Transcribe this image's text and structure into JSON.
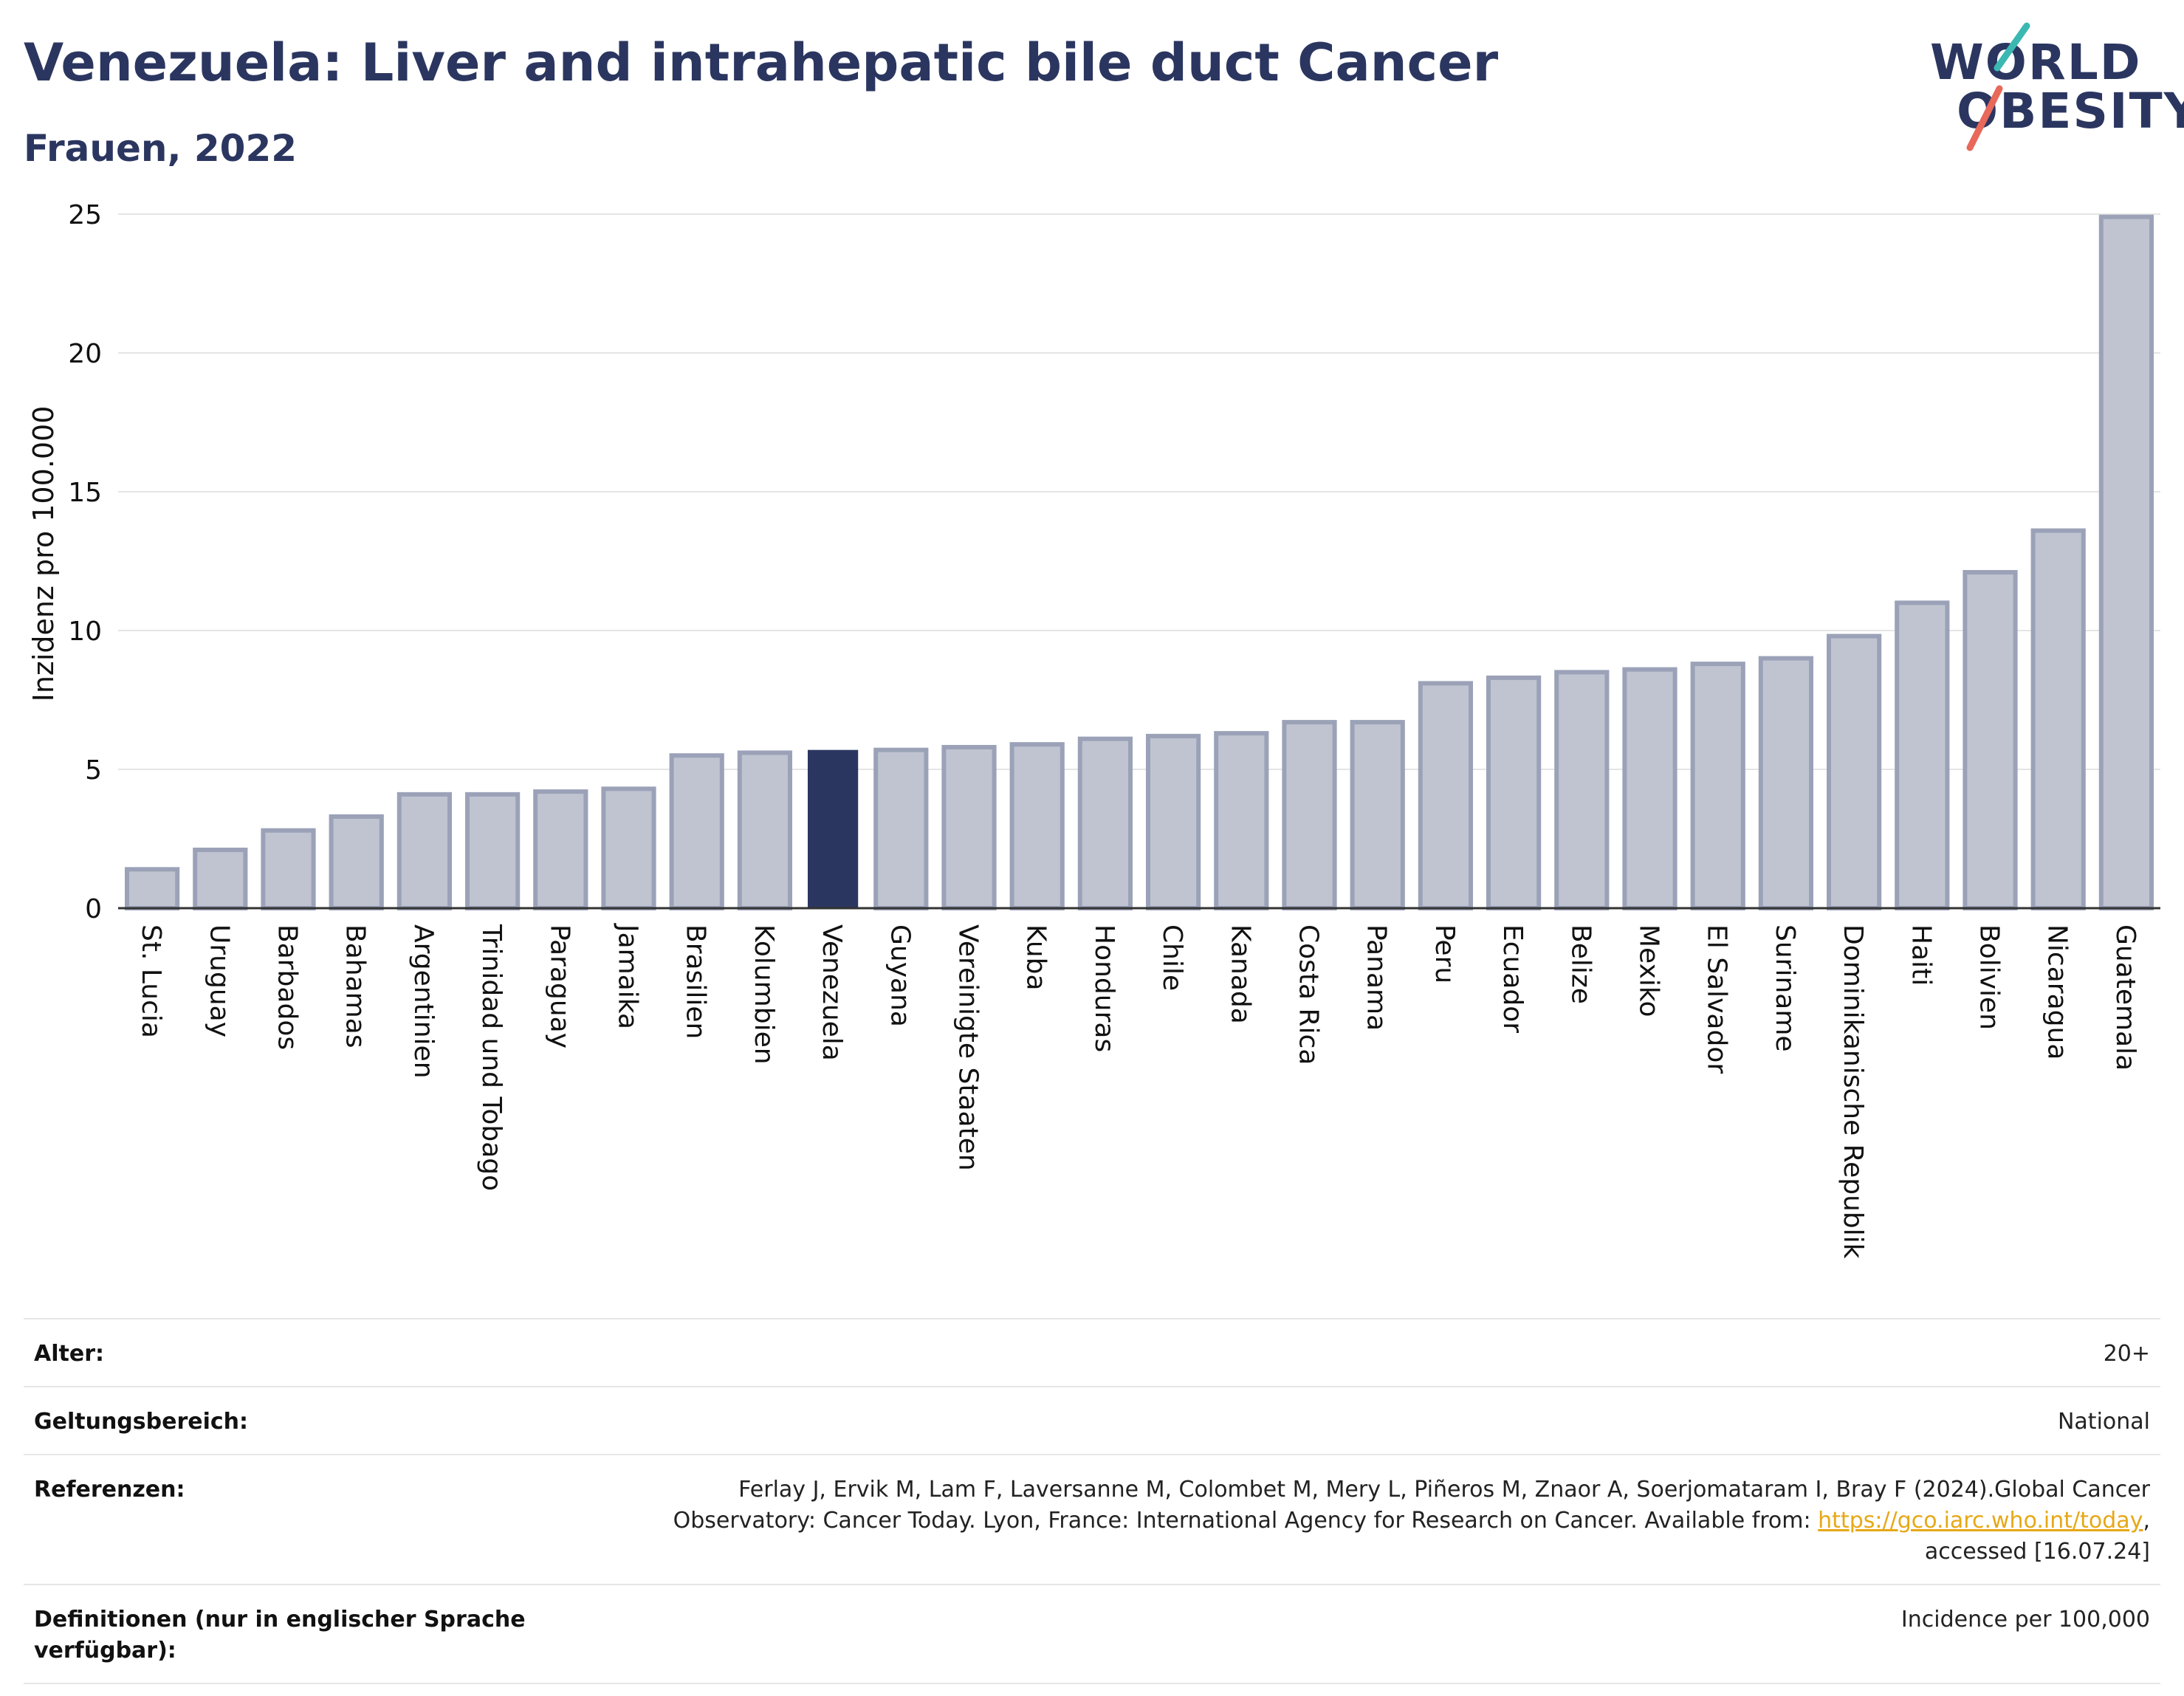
{
  "header": {
    "title": "Venezuela: Liver and intrahepatic bile duct Cancer",
    "subtitle": "Frauen, 2022"
  },
  "logo": {
    "line1": "WORLD",
    "line2": "OBESITY"
  },
  "colors": {
    "highlight": "#2b3660",
    "bar_fill": "#c0c4d1",
    "bar_stroke": "#9ba2b8",
    "logo_teal": "#3cb8b2",
    "logo_red": "#e8685a",
    "link": "#e6a817"
  },
  "chart_data": {
    "type": "bar",
    "title": "Venezuela: Liver and intrahepatic bile duct Cancer",
    "subtitle": "Frauen, 2022",
    "xlabel": "",
    "ylabel": "Inzidenz pro 100.000",
    "ylim": [
      0,
      25
    ],
    "yticks": [
      0,
      5,
      10,
      15,
      20,
      25
    ],
    "grid": true,
    "highlight": "Venezuela",
    "categories": [
      "St. Lucia",
      "Uruguay",
      "Barbados",
      "Bahamas",
      "Argentinien",
      "Trinidad und Tobago",
      "Paraguay",
      "Jamaika",
      "Brasilien",
      "Kolumbien",
      "Venezuela",
      "Guyana",
      "Vereinigte Staaten",
      "Kuba",
      "Honduras",
      "Chile",
      "Kanada",
      "Costa Rica",
      "Panama",
      "Peru",
      "Ecuador",
      "Belize",
      "Mexiko",
      "El Salvador",
      "Suriname",
      "Dominikanische Republik",
      "Haiti",
      "Bolivien",
      "Nicaragua",
      "Guatemala"
    ],
    "values": [
      1.4,
      2.1,
      2.8,
      3.3,
      4.1,
      4.1,
      4.2,
      4.3,
      5.5,
      5.6,
      5.7,
      5.7,
      5.8,
      5.9,
      6.1,
      6.2,
      6.3,
      6.7,
      6.7,
      8.1,
      8.3,
      8.5,
      8.6,
      8.8,
      9.0,
      9.8,
      11.0,
      12.1,
      13.6,
      24.9
    ]
  },
  "meta": {
    "rows": [
      {
        "label": "Alter:",
        "value": "20+"
      },
      {
        "label": "Geltungsbereich:",
        "value": "National"
      },
      {
        "label": "Referenzen:",
        "value_before": "Ferlay J, Ervik M, Lam F, Laversanne M, Colombet M, Mery L, Piñeros M, Znaor A, Soerjomataram I, Bray F (2024).Global Cancer Observatory: Cancer Today. Lyon, France: International Agency for Research on Cancer. Available from: ",
        "link": "https://gco.iarc.who.int/today",
        "value_after": ", accessed [16.07.24]"
      },
      {
        "label": "Definitionen (nur in englischer Sprache verfügbar):",
        "value": "Incidence per 100,000"
      }
    ]
  }
}
